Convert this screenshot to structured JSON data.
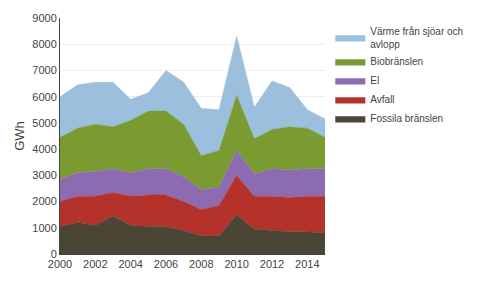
{
  "chart_data": {
    "type": "area",
    "stacked": true,
    "ylabel": "GWh",
    "x": [
      2000,
      2001,
      2002,
      2003,
      2004,
      2005,
      2006,
      2007,
      2008,
      2009,
      2010,
      2011,
      2012,
      2013,
      2014,
      2015
    ],
    "series": [
      {
        "name": "Fossila bränslen",
        "color": "#4a4535",
        "values": [
          1050,
          1200,
          1100,
          1450,
          1100,
          1050,
          1050,
          900,
          700,
          700,
          1500,
          950,
          900,
          850,
          850,
          800
        ]
      },
      {
        "name": "Avfall",
        "color": "#b5322a",
        "values": [
          950,
          1000,
          1100,
          900,
          1100,
          1200,
          1200,
          1100,
          1000,
          1150,
          1500,
          1250,
          1300,
          1300,
          1350,
          1400
        ]
      },
      {
        "name": "El",
        "color": "#8c6bb1",
        "values": [
          850,
          900,
          950,
          900,
          900,
          1000,
          1000,
          950,
          750,
          700,
          950,
          850,
          1050,
          1050,
          1050,
          1050
        ]
      },
      {
        "name": "Biobränslen",
        "color": "#7a9a32",
        "values": [
          1600,
          1700,
          1800,
          1600,
          2000,
          2200,
          2200,
          2000,
          1300,
          1400,
          2100,
          1350,
          1500,
          1650,
          1550,
          1200
        ]
      },
      {
        "name": "Värme från sjöar och\navlopp",
        "color": "#9bbfdc",
        "values": [
          1550,
          1650,
          1600,
          1700,
          800,
          700,
          1550,
          1600,
          1800,
          1550,
          2250,
          1200,
          1850,
          1500,
          700,
          700
        ]
      }
    ],
    "xlim": [
      2000,
      2015
    ],
    "xticks": [
      2000,
      2002,
      2004,
      2006,
      2008,
      2010,
      2012,
      2014
    ],
    "ylim": [
      0,
      9000
    ],
    "yticks": [
      0,
      1000,
      2000,
      3000,
      4000,
      5000,
      6000,
      7000,
      8000,
      9000
    ],
    "grid": true,
    "legend": "right"
  }
}
